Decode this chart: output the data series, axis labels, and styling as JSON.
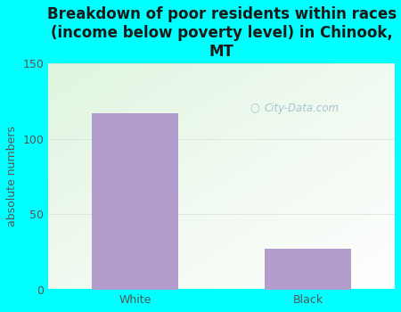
{
  "categories": [
    "White",
    "Black"
  ],
  "values": [
    117,
    27
  ],
  "bar_color": "#b39dcd",
  "title": "Breakdown of poor residents within races\n(income below poverty level) in Chinook,\nMT",
  "ylabel": "absolute numbers",
  "ylim": [
    0,
    150
  ],
  "yticks": [
    0,
    50,
    100,
    150
  ],
  "bg_outer": "#00ffff",
  "title_fontsize": 12,
  "axis_label_fontsize": 9,
  "tick_fontsize": 9,
  "watermark": "City-Data.com"
}
